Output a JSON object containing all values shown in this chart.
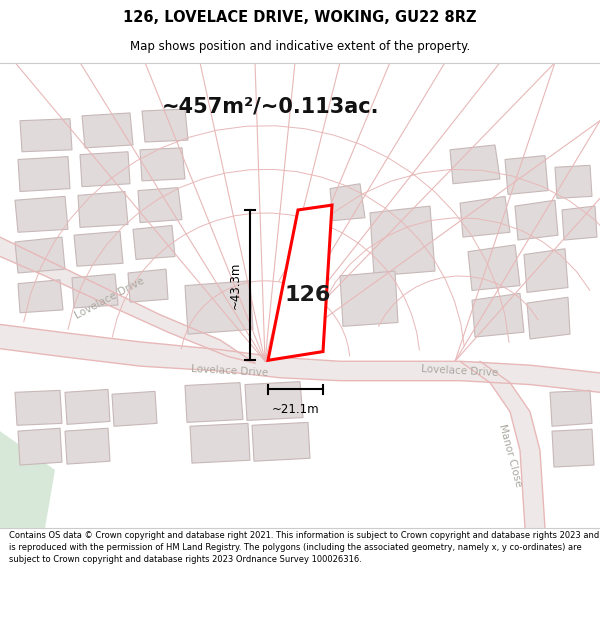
{
  "title_line1": "126, LOVELACE DRIVE, WOKING, GU22 8RZ",
  "title_line2": "Map shows position and indicative extent of the property.",
  "area_text": "~457m²/~0.113ac.",
  "dim_vertical": "~43.3m",
  "dim_horizontal": "~21.1m",
  "house_number": "126",
  "footer_text": "Contains OS data © Crown copyright and database right 2021. This information is subject to Crown copyright and database rights 2023 and is reproduced with the permission of HM Land Registry. The polygons (including the associated geometry, namely x, y co-ordinates) are subject to Crown copyright and database rights 2023 Ordnance Survey 100026316.",
  "background_color": "#ffffff",
  "map_bg_color": "#f7f3f3",
  "road_line_color": "#e8b8b8",
  "road_fill_color": "#f0e8e8",
  "building_fill": "#e0dada",
  "building_edge": "#c8b8b8",
  "highlight_fill": "#ffffff",
  "highlight_edge": "#ff0000",
  "dim_line_color": "#000000",
  "text_color": "#000000",
  "road_text_color": "#aaa8a0",
  "green_patch_color": "#d8e8d8"
}
